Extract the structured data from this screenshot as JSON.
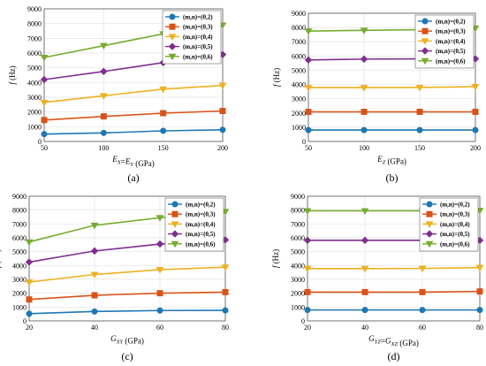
{
  "colors": {
    "(m,n)=(0,2)": "#1f77b4",
    "(m,n)=(0,3)": "#d95319",
    "(m,n)=(0,4)": "#edb120",
    "(m,n)=(0,5)": "#7e2f8e",
    "(m,n)=(0,6)": "#77ac30"
  },
  "chart_data": [
    {
      "type": "line",
      "panel_label": "(a)",
      "xlabel": "E_X=E_Y (GPa)",
      "ylabel": "f (Hz)",
      "x": [
        50,
        100,
        150,
        200
      ],
      "xlim": [
        50,
        200
      ],
      "ylim": [
        0,
        9000
      ],
      "x_ticks": [
        "50",
        "100",
        "150",
        "200"
      ],
      "y_ticks": [
        "0",
        "1000",
        "2000",
        "3000",
        "4000",
        "5000",
        "6000",
        "7000",
        "8000",
        "9000"
      ],
      "legend_position": "top-right",
      "grid": true,
      "series": [
        {
          "name": "(m,n)=(0,2)",
          "marker": "circle",
          "values": [
            500,
            580,
            720,
            790
          ]
        },
        {
          "name": "(m,n)=(0,3)",
          "marker": "square",
          "values": [
            1450,
            1700,
            1920,
            2070
          ]
        },
        {
          "name": "(m,n)=(0,4)",
          "marker": "triangle-down",
          "values": [
            2650,
            3100,
            3550,
            3800
          ]
        },
        {
          "name": "(m,n)=(0,5)",
          "marker": "diamond",
          "values": [
            4200,
            4750,
            5350,
            5900
          ]
        },
        {
          "name": "(m,n)=(0,6)",
          "marker": "triangle-down",
          "values": [
            5700,
            6500,
            7300,
            7900
          ]
        }
      ]
    },
    {
      "type": "line",
      "panel_label": "(b)",
      "xlabel": "E_Z (GPa)",
      "ylabel": "f (Hz)",
      "x": [
        50,
        100,
        150,
        200
      ],
      "xlim": [
        50,
        200
      ],
      "ylim": [
        0,
        9000
      ],
      "x_ticks": [
        "50",
        "100",
        "150",
        "200"
      ],
      "y_ticks": [
        "0",
        "1000",
        "2000",
        "3000",
        "4000",
        "5000",
        "6000",
        "7000",
        "8000",
        "9000"
      ],
      "legend_position": "top-right",
      "grid": true,
      "series": [
        {
          "name": "(m,n)=(0,2)",
          "marker": "circle",
          "values": [
            800,
            800,
            800,
            800
          ]
        },
        {
          "name": "(m,n)=(0,3)",
          "marker": "square",
          "values": [
            2080,
            2080,
            2080,
            2080
          ]
        },
        {
          "name": "(m,n)=(0,4)",
          "marker": "triangle-down",
          "values": [
            3780,
            3780,
            3790,
            3850
          ]
        },
        {
          "name": "(m,n)=(0,5)",
          "marker": "diamond",
          "values": [
            5720,
            5780,
            5800,
            5800
          ]
        },
        {
          "name": "(m,n)=(0,6)",
          "marker": "triangle-down",
          "values": [
            7750,
            7800,
            7850,
            7950
          ]
        }
      ]
    },
    {
      "type": "line",
      "panel_label": "(c)",
      "xlabel": "G_XY (GPa)",
      "ylabel": "f (Hz)",
      "x": [
        20,
        40,
        60,
        80
      ],
      "xlim": [
        20,
        80
      ],
      "ylim": [
        0,
        9000
      ],
      "x_ticks": [
        "20",
        "40",
        "60",
        "80"
      ],
      "y_ticks": [
        "0",
        "1000",
        "2000",
        "3000",
        "4000",
        "5000",
        "6000",
        "7000",
        "8000",
        "9000"
      ],
      "legend_position": "top-right",
      "grid": true,
      "series": [
        {
          "name": "(m,n)=(0,2)",
          "marker": "circle",
          "values": [
            520,
            680,
            750,
            760
          ]
        },
        {
          "name": "(m,n)=(0,3)",
          "marker": "square",
          "values": [
            1550,
            1850,
            2000,
            2080
          ]
        },
        {
          "name": "(m,n)=(0,4)",
          "marker": "triangle-down",
          "values": [
            2800,
            3350,
            3700,
            3880
          ]
        },
        {
          "name": "(m,n)=(0,5)",
          "marker": "diamond",
          "values": [
            4250,
            5050,
            5550,
            5850
          ]
        },
        {
          "name": "(m,n)=(0,6)",
          "marker": "triangle-down",
          "values": [
            5700,
            6900,
            7450,
            7900
          ]
        }
      ]
    },
    {
      "type": "line",
      "panel_label": "(d)",
      "xlabel": "G_YZ=G_XZ (GPa)",
      "ylabel": "f (Hz)",
      "x": [
        20,
        40,
        60,
        80
      ],
      "xlim": [
        20,
        80
      ],
      "ylim": [
        0,
        9000
      ],
      "x_ticks": [
        "20",
        "40",
        "60",
        "80"
      ],
      "y_ticks": [
        "0",
        "1000",
        "2000",
        "3000",
        "4000",
        "5000",
        "6000",
        "7000",
        "8000",
        "9000"
      ],
      "legend_position": "top-right",
      "grid": true,
      "series": [
        {
          "name": "(m,n)=(0,2)",
          "marker": "circle",
          "values": [
            790,
            790,
            790,
            790
          ]
        },
        {
          "name": "(m,n)=(0,3)",
          "marker": "square",
          "values": [
            2080,
            2080,
            2080,
            2130
          ]
        },
        {
          "name": "(m,n)=(0,4)",
          "marker": "triangle-down",
          "values": [
            3780,
            3780,
            3790,
            3850
          ]
        },
        {
          "name": "(m,n)=(0,5)",
          "marker": "diamond",
          "values": [
            5820,
            5820,
            5820,
            5820
          ]
        },
        {
          "name": "(m,n)=(0,6)",
          "marker": "triangle-down",
          "values": [
            7950,
            7950,
            7950,
            7980
          ]
        }
      ]
    }
  ]
}
